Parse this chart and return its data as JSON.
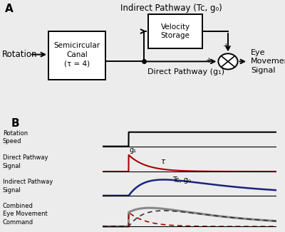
{
  "title_A": "A",
  "title_B": "B",
  "indirect_pathway_label": "Indirect Pathway (Tc, g₀)",
  "velocity_storage_label": "Velocity\nStorage",
  "direct_pathway_label": "Direct Pathway (g₁)",
  "semicircular_canal_label": "Semicircular\nCanal\n(τ = 4)",
  "rotation_label": "Rotation",
  "eye_movement_label": "Eye\nMovement\nSignal",
  "rotation_speed_label": "Rotation\nSpeed",
  "direct_pathway_signal_label": "Direct Pathway\nSignal",
  "indirect_pathway_signal_label": "Indirect Pathway\nSignal",
  "combined_label": "Combined\nEye Movement\nCommand",
  "g1_label": "g₁",
  "tau_label": "τ",
  "tc_g0_label": "Tc, g₀",
  "bg_color": "#ececec",
  "line_black": "#000000",
  "line_red": "#aa0000",
  "line_blue": "#1a237e",
  "line_gray": "#888888",
  "line_dash_dark": "#333333"
}
